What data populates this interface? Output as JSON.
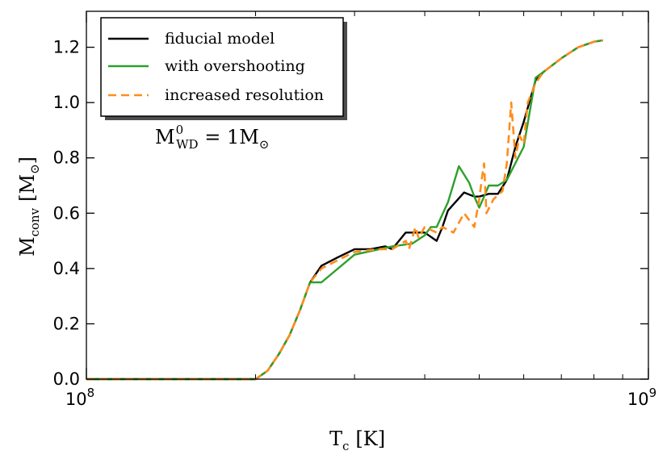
{
  "chart_data": {
    "type": "line",
    "title": "",
    "xlabel_main": "T",
    "xlabel_sub": "c",
    "xlabel_unit": "[K]",
    "ylabel_main": "M",
    "ylabel_sub": "conv",
    "ylabel_unit_open": "[M",
    "ylabel_unit_sym": "⊙",
    "ylabel_unit_close": "]",
    "x_scale": "log",
    "xlim": [
      100000000,
      1000000000
    ],
    "ylim": [
      0.0,
      1.33
    ],
    "x_ticks": [
      {
        "value": 100000000,
        "base": "10",
        "exp": "8"
      },
      {
        "value": 1000000000,
        "base": "10",
        "exp": "9"
      }
    ],
    "y_ticks": [
      {
        "value": 0.0,
        "label": "0.0"
      },
      {
        "value": 0.2,
        "label": "0.2"
      },
      {
        "value": 0.4,
        "label": "0.4"
      },
      {
        "value": 0.6,
        "label": "0.6"
      },
      {
        "value": 0.8,
        "label": "0.8"
      },
      {
        "value": 1.0,
        "label": "1.0"
      },
      {
        "value": 1.2,
        "label": "1.2"
      }
    ],
    "grid": false,
    "legend_position": "top-left",
    "annotation": {
      "main": "M",
      "sup": "0",
      "sub": "WD",
      "eq": " = 1M",
      "sym": "⊙"
    },
    "series": [
      {
        "name": "fiducial model",
        "color": "#000000",
        "dash": "solid",
        "x": [
          100000000,
          150000000,
          200000000,
          210000000,
          220000000,
          230000000,
          240000000,
          250000000,
          262000000,
          280000000,
          300000000,
          320000000,
          340000000,
          350000000,
          370000000,
          380000000,
          400000000,
          420000000,
          430000000,
          440000000,
          470000000,
          490000000,
          500000000,
          520000000,
          540000000,
          560000000,
          580000000,
          600000000,
          630000000,
          650000000,
          700000000,
          750000000,
          800000000,
          830000000
        ],
        "values": [
          0.0,
          0.0,
          0.0,
          0.03,
          0.09,
          0.16,
          0.25,
          0.35,
          0.41,
          0.44,
          0.47,
          0.47,
          0.48,
          0.47,
          0.53,
          0.53,
          0.53,
          0.5,
          0.55,
          0.61,
          0.675,
          0.66,
          0.66,
          0.67,
          0.67,
          0.72,
          0.84,
          0.93,
          1.08,
          1.11,
          1.16,
          1.2,
          1.22,
          1.225
        ]
      },
      {
        "name": "with overshooting",
        "color": "#2ca02c",
        "dash": "solid",
        "x": [
          100000000,
          150000000,
          200000000,
          210000000,
          220000000,
          230000000,
          240000000,
          250000000,
          262000000,
          300000000,
          350000000,
          380000000,
          400000000,
          410000000,
          420000000,
          440000000,
          460000000,
          480000000,
          490000000,
          500000000,
          510000000,
          520000000,
          540000000,
          560000000,
          600000000,
          630000000,
          650000000,
          700000000,
          750000000,
          800000000,
          830000000
        ],
        "values": [
          0.0,
          0.0,
          0.0,
          0.03,
          0.09,
          0.16,
          0.25,
          0.35,
          0.35,
          0.45,
          0.48,
          0.49,
          0.52,
          0.55,
          0.55,
          0.64,
          0.77,
          0.71,
          0.66,
          0.62,
          0.66,
          0.7,
          0.7,
          0.72,
          0.84,
          1.09,
          1.11,
          1.16,
          1.2,
          1.22,
          1.225
        ]
      },
      {
        "name": "increased resolution",
        "color": "#ff8c1a",
        "dash": "dashed",
        "x": [
          100000000,
          150000000,
          200000000,
          210000000,
          220000000,
          230000000,
          240000000,
          250000000,
          262000000,
          280000000,
          300000000,
          330000000,
          350000000,
          370000000,
          375000000,
          385000000,
          390000000,
          400000000,
          420000000,
          430000000,
          450000000,
          470000000,
          490000000,
          500000000,
          505000000,
          510000000,
          515000000,
          530000000,
          550000000,
          560000000,
          570000000,
          580000000,
          590000000,
          600000000,
          610000000,
          630000000,
          650000000,
          700000000,
          750000000,
          800000000,
          830000000
        ],
        "values": [
          0.0,
          0.0,
          0.0,
          0.03,
          0.09,
          0.16,
          0.25,
          0.35,
          0.4,
          0.43,
          0.46,
          0.47,
          0.47,
          0.5,
          0.47,
          0.55,
          0.51,
          0.55,
          0.53,
          0.55,
          0.53,
          0.6,
          0.55,
          0.65,
          0.72,
          0.78,
          0.6,
          0.65,
          0.68,
          0.78,
          1.0,
          0.8,
          0.88,
          0.85,
          1.0,
          1.07,
          1.11,
          1.16,
          1.2,
          1.22,
          1.225
        ]
      }
    ]
  }
}
